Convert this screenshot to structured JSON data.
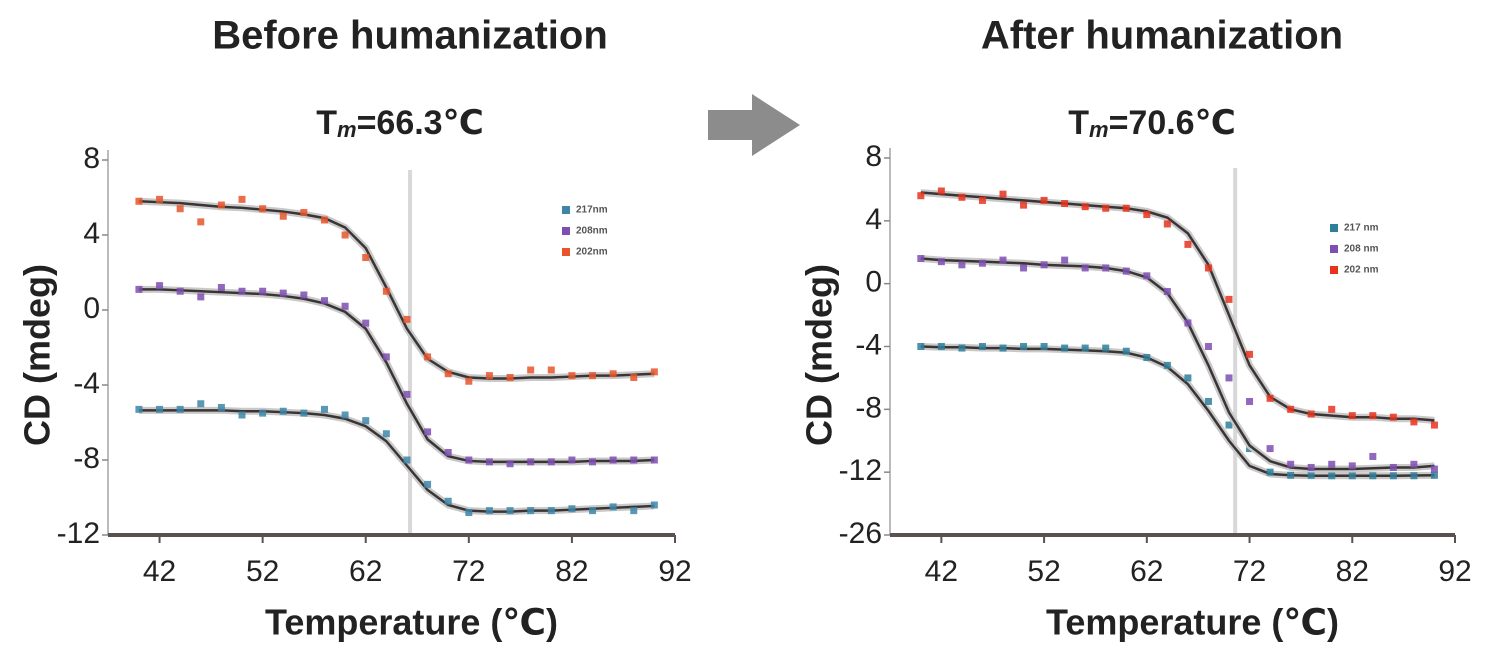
{
  "chart_data": [
    {
      "type": "scatter",
      "title": "Before humanization",
      "annotation": {
        "text": "T",
        "subscript": "m",
        "suffix": "=66.3℃",
        "x": 66.3
      },
      "x_label": "Temperature (℃)",
      "y_label": "CD (mdeg)",
      "xlim": [
        37,
        92
      ],
      "xticks": [
        42,
        52,
        62,
        72,
        82,
        92
      ],
      "ylim": [
        -12,
        8
      ],
      "yticks": [
        -12,
        -8,
        -4,
        0,
        4,
        8
      ],
      "x": [
        40,
        42,
        44,
        46,
        48,
        50,
        52,
        54,
        56,
        58,
        60,
        62,
        64,
        66,
        68,
        70,
        72,
        74,
        76,
        78,
        80,
        82,
        84,
        86,
        88,
        90
      ],
      "series": [
        {
          "name": "217nm",
          "color": "#3d86a8",
          "values": [
            -5.3,
            -5.3,
            -5.3,
            -5.0,
            -5.2,
            -5.6,
            -5.5,
            -5.4,
            -5.5,
            -5.3,
            -5.6,
            -5.9,
            -6.6,
            -8.0,
            -9.3,
            -10.2,
            -10.8,
            -10.7,
            -10.7,
            -10.7,
            -10.7,
            -10.6,
            -10.7,
            -10.5,
            -10.7,
            -10.4
          ],
          "fit": [
            -5.35,
            -5.35,
            -5.35,
            -5.35,
            -5.35,
            -5.4,
            -5.4,
            -5.45,
            -5.5,
            -5.6,
            -5.8,
            -6.2,
            -7.0,
            -8.3,
            -9.6,
            -10.4,
            -10.7,
            -10.75,
            -10.75,
            -10.7,
            -10.7,
            -10.65,
            -10.6,
            -10.55,
            -10.5,
            -10.45
          ]
        },
        {
          "name": "208nm",
          "color": "#7e4fb0",
          "values": [
            1.1,
            1.3,
            1.0,
            0.7,
            1.2,
            1.0,
            1.0,
            0.9,
            0.8,
            0.5,
            0.2,
            -0.7,
            -2.5,
            -4.5,
            -6.5,
            -7.6,
            -8.0,
            -8.1,
            -8.2,
            -8.1,
            -8.1,
            -8.0,
            -8.1,
            -8.0,
            -8.0,
            -8.0
          ],
          "fit": [
            1.1,
            1.1,
            1.05,
            1.0,
            0.95,
            0.9,
            0.85,
            0.75,
            0.6,
            0.35,
            -0.1,
            -1.0,
            -2.8,
            -5.0,
            -6.9,
            -7.8,
            -8.05,
            -8.1,
            -8.1,
            -8.1,
            -8.1,
            -8.1,
            -8.05,
            -8.05,
            -8.05,
            -8.0
          ]
        },
        {
          "name": "202nm",
          "color": "#e8552c",
          "values": [
            5.8,
            5.9,
            5.4,
            4.7,
            5.6,
            5.9,
            5.4,
            5.0,
            5.2,
            4.8,
            4.0,
            2.8,
            1.0,
            -0.5,
            -2.5,
            -3.4,
            -3.8,
            -3.5,
            -3.6,
            -3.2,
            -3.2,
            -3.5,
            -3.5,
            -3.4,
            -3.6,
            -3.3
          ],
          "fit": [
            5.8,
            5.75,
            5.7,
            5.6,
            5.5,
            5.45,
            5.35,
            5.25,
            5.1,
            4.9,
            4.4,
            3.3,
            1.2,
            -1.0,
            -2.6,
            -3.3,
            -3.6,
            -3.65,
            -3.65,
            -3.6,
            -3.6,
            -3.55,
            -3.5,
            -3.5,
            -3.45,
            -3.4
          ]
        }
      ]
    },
    {
      "type": "scatter",
      "title": "After humanization",
      "annotation": {
        "text": "T",
        "subscript": "m",
        "suffix": "=70.6℃",
        "x": 70.6
      },
      "x_label": "Temperature (℃)",
      "y_label": "CD (mdeg)",
      "xlim": [
        37,
        92
      ],
      "xticks": [
        42,
        52,
        62,
        72,
        82,
        92
      ],
      "ylim": [
        -26,
        8
      ],
      "yticks": [
        -26,
        -12,
        -8,
        -4,
        0,
        4,
        8
      ],
      "x": [
        40,
        42,
        44,
        46,
        48,
        50,
        52,
        54,
        56,
        58,
        60,
        62,
        64,
        66,
        68,
        70,
        72,
        74,
        76,
        78,
        80,
        82,
        84,
        86,
        88,
        90
      ],
      "series": [
        {
          "name": "217 nm",
          "color": "#2f7f9a",
          "values": [
            -4.0,
            -4.0,
            -4.1,
            -4.0,
            -4.1,
            -4.0,
            -4.0,
            -4.1,
            -4.1,
            -4.1,
            -4.3,
            -4.7,
            -5.2,
            -6.0,
            -7.5,
            -9.0,
            -10.5,
            -12.0,
            -12.7,
            -12.7,
            -12.8,
            -12.8,
            -12.8,
            -12.8,
            -12.8,
            -12.7
          ],
          "fit": [
            -4.0,
            -4.05,
            -4.05,
            -4.1,
            -4.1,
            -4.15,
            -4.15,
            -4.2,
            -4.25,
            -4.3,
            -4.4,
            -4.7,
            -5.3,
            -6.4,
            -8.1,
            -10.0,
            -11.6,
            -12.4,
            -12.7,
            -12.8,
            -12.8,
            -12.8,
            -12.8,
            -12.8,
            -12.75,
            -12.7
          ]
        },
        {
          "name": "208 nm",
          "color": "#7e4fb0",
          "values": [
            1.6,
            1.4,
            1.2,
            1.3,
            1.5,
            1.0,
            1.2,
            1.5,
            1.0,
            1.0,
            0.8,
            0.5,
            -0.5,
            -2.5,
            -4.0,
            -6.0,
            -7.5,
            -10.5,
            -11.5,
            -11.7,
            -11.5,
            -11.6,
            -11.0,
            -11.7,
            -11.5,
            -11.8
          ],
          "fit": [
            1.6,
            1.5,
            1.45,
            1.4,
            1.35,
            1.3,
            1.2,
            1.15,
            1.1,
            1.0,
            0.8,
            0.4,
            -0.6,
            -2.5,
            -5.2,
            -8.2,
            -10.3,
            -11.3,
            -11.7,
            -11.8,
            -11.8,
            -11.8,
            -11.75,
            -11.7,
            -11.7,
            -11.6
          ]
        },
        {
          "name": "202 nm",
          "color": "#e8321c",
          "values": [
            5.6,
            5.9,
            5.5,
            5.3,
            5.7,
            5.0,
            5.3,
            5.1,
            4.9,
            4.8,
            4.8,
            4.4,
            3.8,
            2.5,
            1.0,
            -1.0,
            -4.5,
            -7.3,
            -8.0,
            -8.3,
            -8.0,
            -8.4,
            -8.4,
            -8.5,
            -8.8,
            -9.0
          ],
          "fit": [
            5.8,
            5.7,
            5.6,
            5.5,
            5.4,
            5.3,
            5.2,
            5.1,
            5.0,
            4.9,
            4.8,
            4.6,
            4.2,
            3.2,
            1.2,
            -2.0,
            -5.2,
            -7.2,
            -8.0,
            -8.3,
            -8.4,
            -8.5,
            -8.5,
            -8.6,
            -8.6,
            -8.7
          ]
        }
      ]
    }
  ]
}
